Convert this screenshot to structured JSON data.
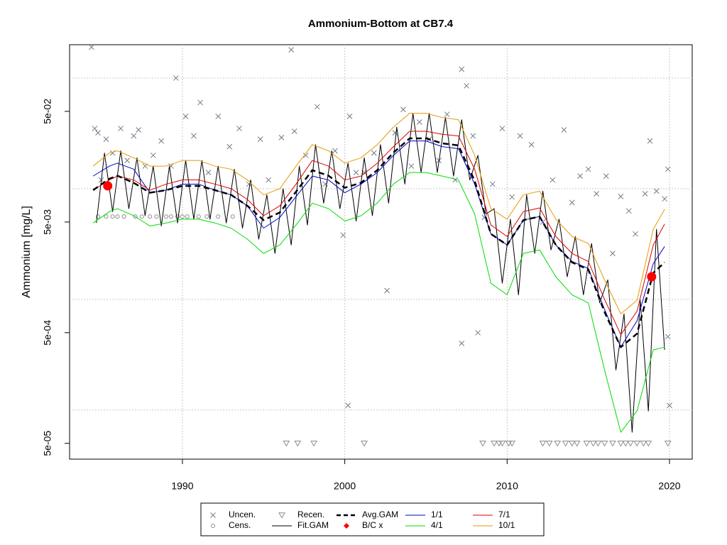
{
  "chart_data": {
    "type": "line",
    "title": "Ammonium-Bottom at CB7.4",
    "y_label": "Ammonium [mg/L]",
    "log_y": true,
    "grid": true,
    "xlim": [
      1983.05,
      2021.4
    ],
    "ylim": [
      3.6e-05,
      0.2
    ],
    "xticks": [
      1990,
      2000,
      2010,
      2020
    ],
    "yticks": [
      {
        "value": 5e-05,
        "label": "5e-05"
      },
      {
        "value": 0.0005,
        "label": "5e-04"
      },
      {
        "value": 0.005,
        "label": "5e-03"
      },
      {
        "value": 0.05,
        "label": "5e-02"
      }
    ],
    "ygrid": [
      0.0001,
      0.001,
      0.01,
      0.1
    ],
    "series": [
      {
        "name": "Uncen.",
        "color": "#707b8c",
        "marker": "x",
        "x": [
          1984.4,
          1984.6,
          1984.8,
          1985,
          1985.3,
          1985.7,
          1986.2,
          1986.6,
          1987,
          1987.3,
          1987.7,
          1988.2,
          1988.7,
          1989.3,
          1989.6,
          1990.2,
          1990.7,
          1991.1,
          1991.6,
          1992.2,
          1992.9,
          1993.5,
          1994.1,
          1994.8,
          1995.3,
          1996.1,
          1996.7,
          1996.9,
          1997.6,
          1998.3,
          1998.8,
          1999.4,
          1999.9,
          2000.3,
          2000.7,
          2001.2,
          2001.8,
          2002.6,
          2003.1,
          2003.6,
          2004.1,
          2004.6,
          2005.2,
          2005.8,
          2006.3,
          2006.8,
          2007.2,
          2007.5,
          2007.9,
          2008.2,
          2008.6,
          2009.1,
          2009.7,
          2010.3,
          2010.8,
          2011.5,
          2012.2,
          2012.8,
          2013.5,
          2014,
          2014.5,
          2015,
          2015.5,
          2016.1,
          2016.5,
          2017,
          2017.5,
          2017.9,
          2018.5,
          2018.8,
          2019.2,
          2019.7,
          2019.9,
          2020,
          2000.2,
          2007.2,
          2019.9
        ],
        "values": [
          0.19,
          0.035,
          0.032,
          0.012,
          0.028,
          0.021,
          0.035,
          0.018,
          0.03,
          0.034,
          0.016,
          0.02,
          0.027,
          0.016,
          0.1,
          0.045,
          0.03,
          0.06,
          0.014,
          0.045,
          0.024,
          0.035,
          0.011,
          0.028,
          0.012,
          0.029,
          0.18,
          0.033,
          0.02,
          0.055,
          0.011,
          0.022,
          0.0038,
          0.045,
          0.014,
          0.014,
          0.021,
          0.0012,
          0.032,
          0.052,
          0.016,
          0.04,
          0.028,
          0.018,
          0.047,
          0.012,
          0.12,
          0.085,
          0.03,
          0.0005,
          0.0055,
          0.011,
          0.035,
          0.0084,
          0.03,
          0.025,
          0.005,
          0.012,
          0.034,
          0.0075,
          0.013,
          0.015,
          0.009,
          0.013,
          0.0026,
          0.0085,
          0.0063,
          0.0039,
          0.009,
          0.027,
          0.0095,
          0.0081,
          0.00046,
          0.00011,
          0.00011,
          0.0004,
          0.015
        ]
      },
      {
        "name": "Cens.",
        "color": "#8c8c8c",
        "marker": "circle",
        "x": [
          1984.8,
          1985.3,
          1985.7,
          1986,
          1986.4,
          1987.1,
          1987.5,
          1988,
          1988.4,
          1989,
          1989.3,
          1989.7,
          1990,
          1990.3,
          1991,
          1991.5,
          1992.2,
          1993.1
        ],
        "values": [
          0.0056,
          0.0056,
          0.0056,
          0.0056,
          0.0056,
          0.0056,
          0.0056,
          0.0056,
          0.0056,
          0.0056,
          0.0056,
          0.0056,
          0.0056,
          0.0056,
          0.0056,
          0.0056,
          0.0056,
          0.0056
        ]
      },
      {
        "name": "Recen.",
        "color": "#8c8c8c",
        "marker": "triangle",
        "x": [
          1996.4,
          1997.1,
          1998.1,
          2001.2,
          2008.5,
          2009.2,
          2009.5,
          2009.7,
          2010.1,
          2010.3,
          2012.2,
          2012.6,
          2013.1,
          2013.6,
          2014,
          2014.3,
          2014.9,
          2015.3,
          2015.6,
          2016,
          2016.5,
          2017,
          2017.3,
          2017.6,
          2018,
          2018.4,
          2018.7,
          2019.9
        ],
        "values": [
          5e-05,
          5e-05,
          5e-05,
          5e-05,
          5e-05,
          5e-05,
          5e-05,
          5e-05,
          5e-05,
          5e-05,
          5e-05,
          5e-05,
          5e-05,
          5e-05,
          5e-05,
          5e-05,
          5e-05,
          5e-05,
          5e-05,
          5e-05,
          5e-05,
          5e-05,
          5e-05,
          5e-05,
          5e-05,
          5e-05,
          5e-05,
          5e-05
        ]
      },
      {
        "name": "Fit.GAM",
        "color": "#000000",
        "line": "solid",
        "width": 1,
        "x": [
          1984.7,
          1985.2,
          1985.7,
          1986.2,
          1986.7,
          1987.2,
          1987.7,
          1988.2,
          1988.7,
          1989.2,
          1989.7,
          1990.2,
          1990.7,
          1991.2,
          1991.7,
          1992.2,
          1992.7,
          1993.2,
          1993.7,
          1994.2,
          1994.7,
          1995.2,
          1995.7,
          1996.2,
          1996.7,
          1997.2,
          1997.7,
          1998.2,
          1998.7,
          1999.2,
          1999.7,
          2000.2,
          2000.7,
          2001.2,
          2001.7,
          2002.2,
          2002.7,
          2003.2,
          2003.7,
          2004.2,
          2004.7,
          2005.2,
          2005.7,
          2006.2,
          2006.7,
          2007.2,
          2007.7,
          2008.2,
          2008.7,
          2009.2,
          2009.7,
          2010.2,
          2010.7,
          2011.2,
          2011.7,
          2012.2,
          2012.7,
          2013.2,
          2013.7,
          2014.2,
          2014.7,
          2015.2,
          2015.7,
          2016.2,
          2016.7,
          2017.2,
          2017.7,
          2018.2,
          2018.7,
          2019.2,
          2019.7
        ],
        "values": [
          0.0049,
          0.021,
          0.0062,
          0.022,
          0.0066,
          0.019,
          0.0057,
          0.016,
          0.0046,
          0.016,
          0.0049,
          0.018,
          0.0053,
          0.018,
          0.0053,
          0.016,
          0.0049,
          0.015,
          0.0044,
          0.012,
          0.0035,
          0.0088,
          0.0026,
          0.01,
          0.0031,
          0.016,
          0.0047,
          0.025,
          0.0074,
          0.022,
          0.0066,
          0.017,
          0.0051,
          0.019,
          0.0057,
          0.025,
          0.0074,
          0.036,
          0.011,
          0.048,
          0.014,
          0.048,
          0.014,
          0.044,
          0.013,
          0.042,
          0.012,
          0.02,
          0.0059,
          0.0066,
          0.0014,
          0.0053,
          0.0011,
          0.0088,
          0.0026,
          0.0095,
          0.0028,
          0.0053,
          0.0016,
          0.0037,
          0.0011,
          0.0032,
          0.00093,
          0.0015,
          0.00023,
          0.00074,
          6.3e-05,
          0.00098,
          9.8e-05,
          0.0043,
          0.00035
        ]
      },
      {
        "name": "Avg.GAM",
        "color": "#000000",
        "line": "dashed",
        "width": 2.5,
        "x": [
          1984.5,
          1985.5,
          1986,
          1987,
          1988,
          1989,
          1990,
          1991,
          1992,
          1993,
          1994,
          1995,
          1996,
          1997,
          1998,
          1999,
          2000,
          2001,
          2002,
          2003,
          2004,
          2005,
          2006,
          2007,
          2008,
          2009,
          2010,
          2011,
          2012,
          2013,
          2014,
          2015,
          2016,
          2017,
          2018,
          2019,
          2019.7
        ],
        "values": [
          0.0097,
          0.0123,
          0.0131,
          0.0113,
          0.0092,
          0.0097,
          0.0106,
          0.0106,
          0.0097,
          0.0088,
          0.007,
          0.0052,
          0.0061,
          0.0094,
          0.0147,
          0.0131,
          0.0102,
          0.0113,
          0.0147,
          0.0212,
          0.0285,
          0.0285,
          0.0257,
          0.0246,
          0.0118,
          0.0039,
          0.0031,
          0.0052,
          0.0056,
          0.0031,
          0.00216,
          0.00186,
          0.00077,
          0.00037,
          0.00049,
          0.00173,
          0.00216
        ]
      },
      {
        "name": "B/C x",
        "color": "#ff0000",
        "marker": "dot",
        "x": [
          1985.4,
          2018.9
        ],
        "values": [
          0.0106,
          0.0016
        ]
      },
      {
        "name": "1/1",
        "color": "#0000cd",
        "line": "solid",
        "width": 1,
        "x": [
          1984.5,
          1985.5,
          1986,
          1987,
          1988,
          1989,
          1990,
          1991,
          1992,
          1993,
          1994,
          1995,
          1996,
          1997,
          1998,
          1999,
          2000,
          2001,
          2002,
          2003,
          2004,
          2005,
          2006,
          2007,
          2008,
          2009,
          2010,
          2011,
          2012,
          2013,
          2014,
          2015,
          2016,
          2017,
          2018,
          2019,
          2019.7
        ],
        "values": [
          0.013,
          0.016,
          0.017,
          0.015,
          0.0092,
          0.0097,
          0.011,
          0.011,
          0.0097,
          0.0088,
          0.007,
          0.0044,
          0.0055,
          0.0085,
          0.013,
          0.012,
          0.0092,
          0.011,
          0.014,
          0.02,
          0.027,
          0.027,
          0.024,
          0.023,
          0.011,
          0.0039,
          0.0031,
          0.0052,
          0.0056,
          0.0031,
          0.0022,
          0.0019,
          0.00081,
          0.00037,
          0.00064,
          0.0021,
          0.003
        ]
      },
      {
        "name": "4/1",
        "color": "#00dd00",
        "line": "solid",
        "width": 1,
        "x": [
          1984.5,
          1985.5,
          1986,
          1987,
          1988,
          1989,
          1990,
          1991,
          1992,
          1993,
          1994,
          1995,
          1996,
          1997,
          1998,
          1999,
          2000,
          2001,
          2002,
          2003,
          2004,
          2005,
          2006,
          2007,
          2008,
          2009,
          2010,
          2011,
          2012,
          2013,
          2014,
          2015,
          2016,
          2017,
          2018,
          2019,
          2019.7
        ],
        "values": [
          0.0049,
          0.0062,
          0.0066,
          0.0057,
          0.0046,
          0.0049,
          0.0053,
          0.0053,
          0.0049,
          0.0044,
          0.0035,
          0.0026,
          0.0031,
          0.0047,
          0.0074,
          0.0066,
          0.0051,
          0.0057,
          0.0074,
          0.011,
          0.014,
          0.014,
          0.013,
          0.012,
          0.0059,
          0.0014,
          0.0011,
          0.0026,
          0.0028,
          0.0016,
          0.0011,
          0.00093,
          0.00023,
          6.3e-05,
          9.8e-05,
          0.00035,
          0.00037
        ]
      },
      {
        "name": "7/1",
        "color": "#dd0000",
        "line": "solid",
        "width": 1,
        "x": [
          1984.5,
          1985.5,
          1986,
          1987,
          1988,
          1989,
          1990,
          1991,
          1992,
          1993,
          1994,
          1995,
          1996,
          1997,
          1998,
          1999,
          2000,
          2001,
          2002,
          2003,
          2004,
          2005,
          2006,
          2007,
          2008,
          2009,
          2010,
          2011,
          2012,
          2013,
          2014,
          2015,
          2016,
          2017,
          2018,
          2019,
          2019.7
        ],
        "values": [
          0.0097,
          0.012,
          0.013,
          0.012,
          0.0097,
          0.011,
          0.012,
          0.012,
          0.011,
          0.01,
          0.008,
          0.0057,
          0.007,
          0.011,
          0.018,
          0.016,
          0.012,
          0.013,
          0.017,
          0.024,
          0.033,
          0.033,
          0.031,
          0.03,
          0.015,
          0.0047,
          0.0037,
          0.0062,
          0.0067,
          0.0037,
          0.0026,
          0.0022,
          0.001,
          0.00048,
          0.00078,
          0.0031,
          0.0048
        ]
      },
      {
        "name": "10/1",
        "color": "#e89a00",
        "line": "solid",
        "width": 1,
        "x": [
          1984.5,
          1985.5,
          1986,
          1987,
          1988,
          1989,
          1990,
          1991,
          1992,
          1993,
          1994,
          1995,
          1996,
          1997,
          1998,
          1999,
          2000,
          2001,
          2002,
          2003,
          2004,
          2005,
          2006,
          2007,
          2008,
          2009,
          2010,
          2011,
          2012,
          2013,
          2014,
          2015,
          2016,
          2017,
          2018,
          2019,
          2019.7
        ],
        "values": [
          0.016,
          0.021,
          0.022,
          0.019,
          0.016,
          0.016,
          0.018,
          0.018,
          0.016,
          0.015,
          0.012,
          0.0088,
          0.01,
          0.016,
          0.025,
          0.022,
          0.017,
          0.019,
          0.025,
          0.036,
          0.048,
          0.048,
          0.044,
          0.042,
          0.02,
          0.0066,
          0.0053,
          0.0088,
          0.0095,
          0.0053,
          0.0037,
          0.0032,
          0.0015,
          0.00074,
          0.00098,
          0.0043,
          0.0065
        ]
      }
    ]
  }
}
